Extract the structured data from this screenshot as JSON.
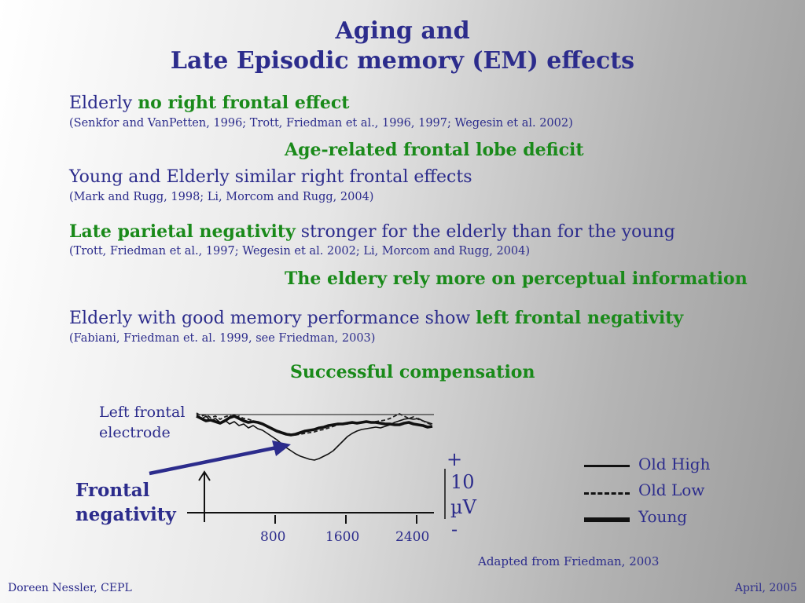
{
  "title": {
    "line1": "Aging and",
    "line2": "Late Episodic memory (EM) effects"
  },
  "findings": [
    {
      "prefix": "Elderly ",
      "highlight": "no right frontal effect",
      "suffix": "",
      "ref": "(Senkfor and VanPetten, 1996; Trott, Friedman et al., 1996, 1997;  Wegesin et al. 2002)"
    },
    {
      "prefix": "Young and Elderly similar right frontal effects",
      "ref": "(Mark and Rugg, 1998; Li, Morcom and Rugg, 2004)"
    },
    {
      "highlight": "Late parietal negativity",
      "suffix": " stronger for the elderly than for the young",
      "ref": "(Trott, Friedman et al., 1997;  Wegesin et al. 2002; Li, Morcom and Rugg, 2004)"
    },
    {
      "prefix": "Elderly with good memory performance show ",
      "highlight": "left frontal negativity",
      "ref": "(Fabiani, Friedman et. al. 1999, see Friedman, 2003)"
    }
  ],
  "conclusions": {
    "c1": "Age-related frontal lobe deficit",
    "c2": "The eldery rely more on perceptual information",
    "c3": "Successful compensation"
  },
  "figure": {
    "electrode_label_1": "Left frontal",
    "electrode_label_2": "electrode",
    "annotation_1": "Frontal",
    "annotation_2": "negativity",
    "x_ticks": [
      "800",
      "1600",
      "2400"
    ],
    "scale_plus": "+",
    "scale_value": "10",
    "scale_unit": "µV",
    "scale_minus": "-",
    "legend": [
      "Old High",
      "Old Low",
      "Young"
    ],
    "credit": "Adapted from Friedman, 2003"
  },
  "footer": {
    "author": "Doreen Nessler, CEPL",
    "date": "April, 2005"
  }
}
